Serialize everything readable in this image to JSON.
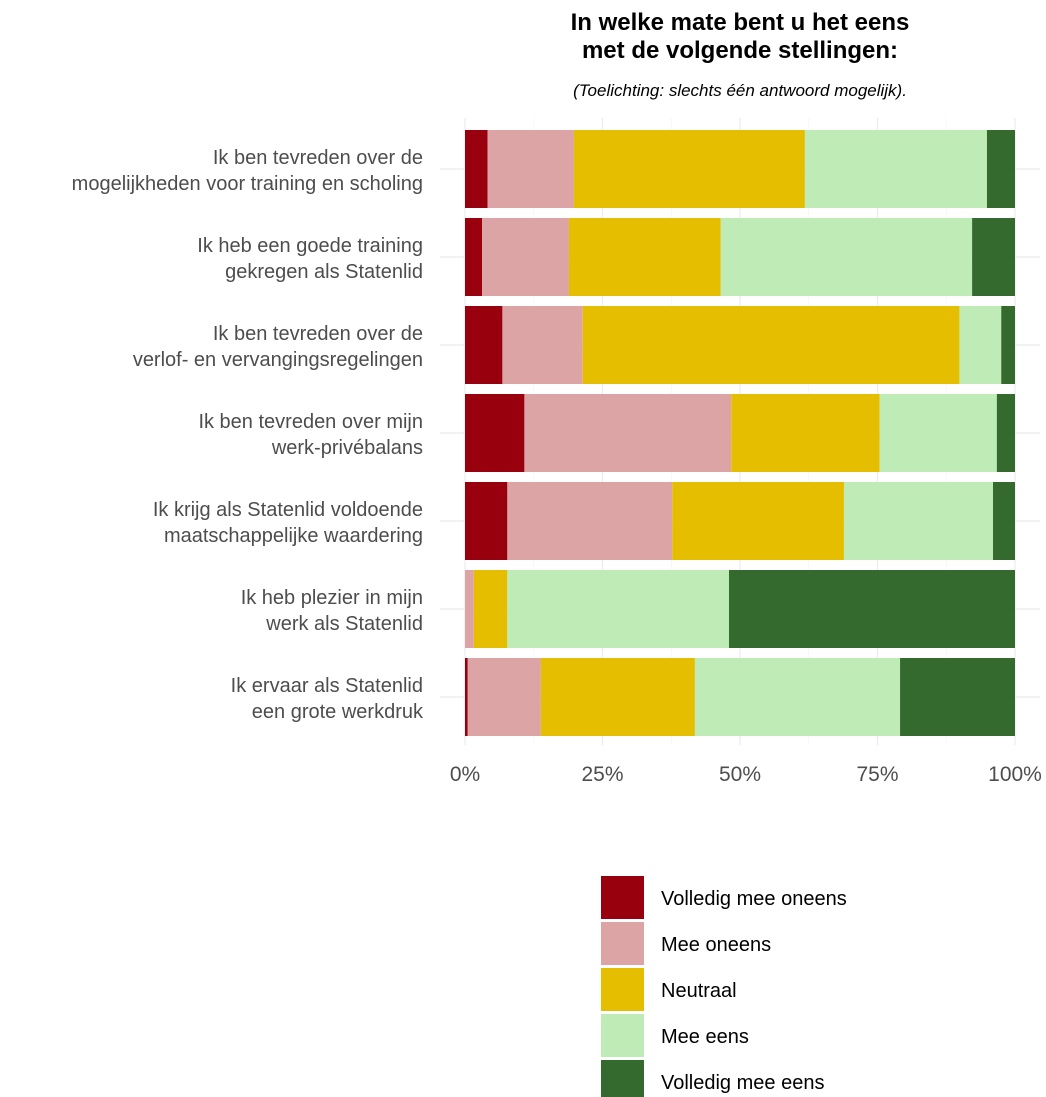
{
  "chart_data": {
    "type": "bar",
    "orientation": "horizontal",
    "stacked": true,
    "normalized": true,
    "title_lines": [
      "In welke mate bent u het eens",
      "met de volgende stellingen:"
    ],
    "subtitle": "(Toelichting: slechts één antwoord mogelijk).",
    "xlabel": "",
    "ylabel": "",
    "xlim": [
      0,
      100
    ],
    "x_ticks": [
      "0%",
      "25%",
      "50%",
      "75%",
      "100%"
    ],
    "x_tick_values": [
      0,
      25,
      50,
      75,
      100
    ],
    "grid": true,
    "legend_position": "bottom",
    "categories": [
      [
        "Ik ben tevreden over de",
        "mogelijkheden voor training en scholing"
      ],
      [
        "Ik heb een goede training",
        "gekregen als Statenlid"
      ],
      [
        "Ik ben tevreden over de",
        "verlof- en vervangingsregelingen"
      ],
      [
        "Ik ben tevreden over mijn",
        "werk-privébalans"
      ],
      [
        "Ik krijg als Statenlid voldoende",
        "maatschappelijke waardering"
      ],
      [
        "Ik heb plezier in mijn",
        "werk als Statenlid"
      ],
      [
        "Ik ervaar als Statenlid",
        "een grote werkdruk"
      ]
    ],
    "series": [
      {
        "name": "Volledig mee oneens",
        "color": "#99000d",
        "values": [
          4.1,
          3.1,
          6.8,
          10.8,
          7.7,
          0.0,
          0.5
        ]
      },
      {
        "name": "Mee oneens",
        "color": "#dca4a4",
        "values": [
          15.7,
          15.8,
          14.6,
          37.6,
          30.0,
          1.6,
          13.3
        ]
      },
      {
        "name": "Neutraal",
        "color": "#e6be00",
        "values": [
          42.0,
          27.6,
          68.5,
          27.0,
          31.2,
          6.1,
          28.0
        ]
      },
      {
        "name": "Mee eens",
        "color": "#bfebb7",
        "values": [
          33.1,
          45.7,
          7.6,
          21.3,
          27.1,
          40.3,
          37.3
        ]
      },
      {
        "name": "Volledig mee eens",
        "color": "#356a2f",
        "values": [
          5.1,
          7.8,
          2.5,
          3.3,
          4.0,
          52.0,
          20.9
        ]
      }
    ]
  }
}
